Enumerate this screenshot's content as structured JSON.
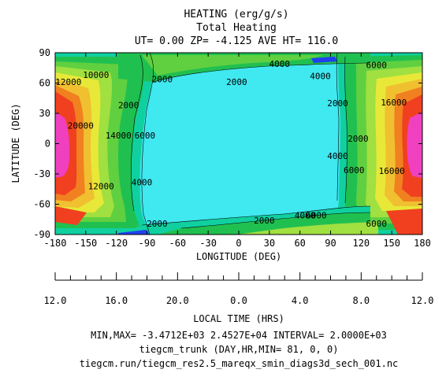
{
  "title_lines": [
    "HEATING (erg/g/s)",
    "Total Heating",
    "UT= 0.00 ZP= -4.125 AVE HT= 116.0"
  ],
  "chart_data": {
    "type": "heatmap",
    "subtype": "filled-contour",
    "field": "Total Heating",
    "units": "erg/g/s",
    "xlabel": "LONGITUDE (DEG)",
    "ylabel": "LATITUDE (DEG)",
    "xlim": [
      -180,
      180
    ],
    "ylim": [
      -90,
      90
    ],
    "x_ticks": [
      -180,
      -150,
      -120,
      -90,
      -60,
      -30,
      0,
      30,
      60,
      90,
      120,
      150,
      180
    ],
    "y_ticks": [
      -90,
      -60,
      -30,
      0,
      30,
      60,
      90
    ],
    "x2_label": "LOCAL TIME (HRS)",
    "x2_ticks": [
      "12.0",
      "16.0",
      "20.0",
      "0.0",
      "4.0",
      "8.0",
      "12.0"
    ],
    "min": -3471.2,
    "max": 24527,
    "interval": 2000,
    "contour_levels": [
      0,
      2000,
      4000,
      6000,
      8000,
      10000,
      12000,
      14000,
      16000,
      18000,
      20000,
      22000
    ],
    "level_colors": [
      "#40e0f0",
      "#10d0a0",
      "#20c050",
      "#60d040",
      "#a0e040",
      "#e8e838",
      "#f0c030",
      "#f08020",
      "#f04020",
      "#e01010",
      "#f040c0",
      "#e020e0"
    ],
    "background_color": "#40e8f0",
    "min_color": "#2040f0",
    "contour_labels": [
      {
        "text": "2000",
        "lon": -75,
        "lat": 64
      },
      {
        "text": "2000",
        "lon": -2,
        "lat": 61
      },
      {
        "text": "4000",
        "lon": 40,
        "lat": 79
      },
      {
        "text": "4000",
        "lon": 80,
        "lat": 67
      },
      {
        "text": "6000",
        "lon": 135,
        "lat": 78
      },
      {
        "text": "10000",
        "lon": -140,
        "lat": 68
      },
      {
        "text": "12000",
        "lon": -167,
        "lat": 61
      },
      {
        "text": "2000",
        "lon": -108,
        "lat": 38
      },
      {
        "text": "6000",
        "lon": -92,
        "lat": 8
      },
      {
        "text": "14000",
        "lon": -118,
        "lat": 8
      },
      {
        "text": "20000",
        "lon": -155,
        "lat": 18
      },
      {
        "text": "12000",
        "lon": -135,
        "lat": -42
      },
      {
        "text": "4000",
        "lon": -95,
        "lat": -38
      },
      {
        "text": "2000",
        "lon": 97,
        "lat": 40
      },
      {
        "text": "2000",
        "lon": 117,
        "lat": 5
      },
      {
        "text": "4000",
        "lon": 97,
        "lat": -12
      },
      {
        "text": "6000",
        "lon": 113,
        "lat": -26
      },
      {
        "text": "16000",
        "lon": 152,
        "lat": 41
      },
      {
        "text": "16000",
        "lon": 150,
        "lat": -27
      },
      {
        "text": "2000",
        "lon": -80,
        "lat": -79
      },
      {
        "text": "2000",
        "lon": 25,
        "lat": -76
      },
      {
        "text": "4000",
        "lon": 65,
        "lat": -71
      },
      {
        "text": "6000",
        "lon": 76,
        "lat": -71
      },
      {
        "text": "6000",
        "lon": 135,
        "lat": -79
      }
    ]
  },
  "footer": {
    "minmax": "MIN,MAX= -3.4712E+03  2.4527E+04 INTERVAL=  2.0000E+03",
    "run": "tiegcm_trunk (DAY,HR,MIN= 81, 0, 0)",
    "file": "tiegcm.run/tiegcm_res2.5_mareqx_smin_diags3d_sech_001.nc"
  }
}
